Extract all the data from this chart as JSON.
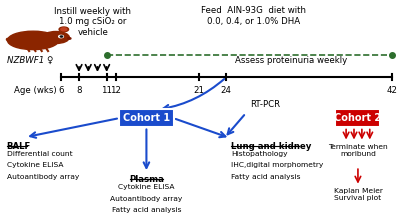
{
  "bg_color": "#ffffff",
  "mouse_color": "#8B2500",
  "dashed_line_color": "#2d6e2d",
  "blue_arrow_color": "#1a4bcc",
  "red_arrow_color": "#cc0000",
  "cohort1_bg": "#1a4bcc",
  "cohort2_bg": "#cc0000",
  "age_ticks": [
    6,
    8,
    11,
    12,
    21,
    24,
    42
  ],
  "age_label": "Age (wks)",
  "nzbwf1_label": "NZBWF1 ♀",
  "instill_text": "Instill weekly with\n1.0 mg cSiO₂ or\nvehicle",
  "feed_text": "Feed  AIN-93G  diet with\n0.0, 0.4, or 1.0% DHA",
  "proteinuria_text": "Assess proteinuria weekly",
  "cohort1_label": "Cohort 1",
  "cohort2_label": "Cohort 2",
  "balf_header": "BALF",
  "balf_items": [
    "Differential count",
    "Cytokine ELISA",
    "Autoantibody array"
  ],
  "plasma_header": "Plasma",
  "plasma_items": [
    "Cytokine ELISA",
    "Autoantibody array",
    "Fatty acid analysis"
  ],
  "lung_header": "Lung and kidney",
  "lung_items": [
    "Histopathology",
    "IHC,digital morphometry",
    "Fatty acid analysis"
  ],
  "rtpcr_label": "RT-PCR",
  "cohort2_terminate": "Terminate when\nmoribund",
  "cohort2_survival": "Kaplan Meier\nSurvival plot",
  "fontsize_main": 7,
  "fontsize_small": 6.2
}
